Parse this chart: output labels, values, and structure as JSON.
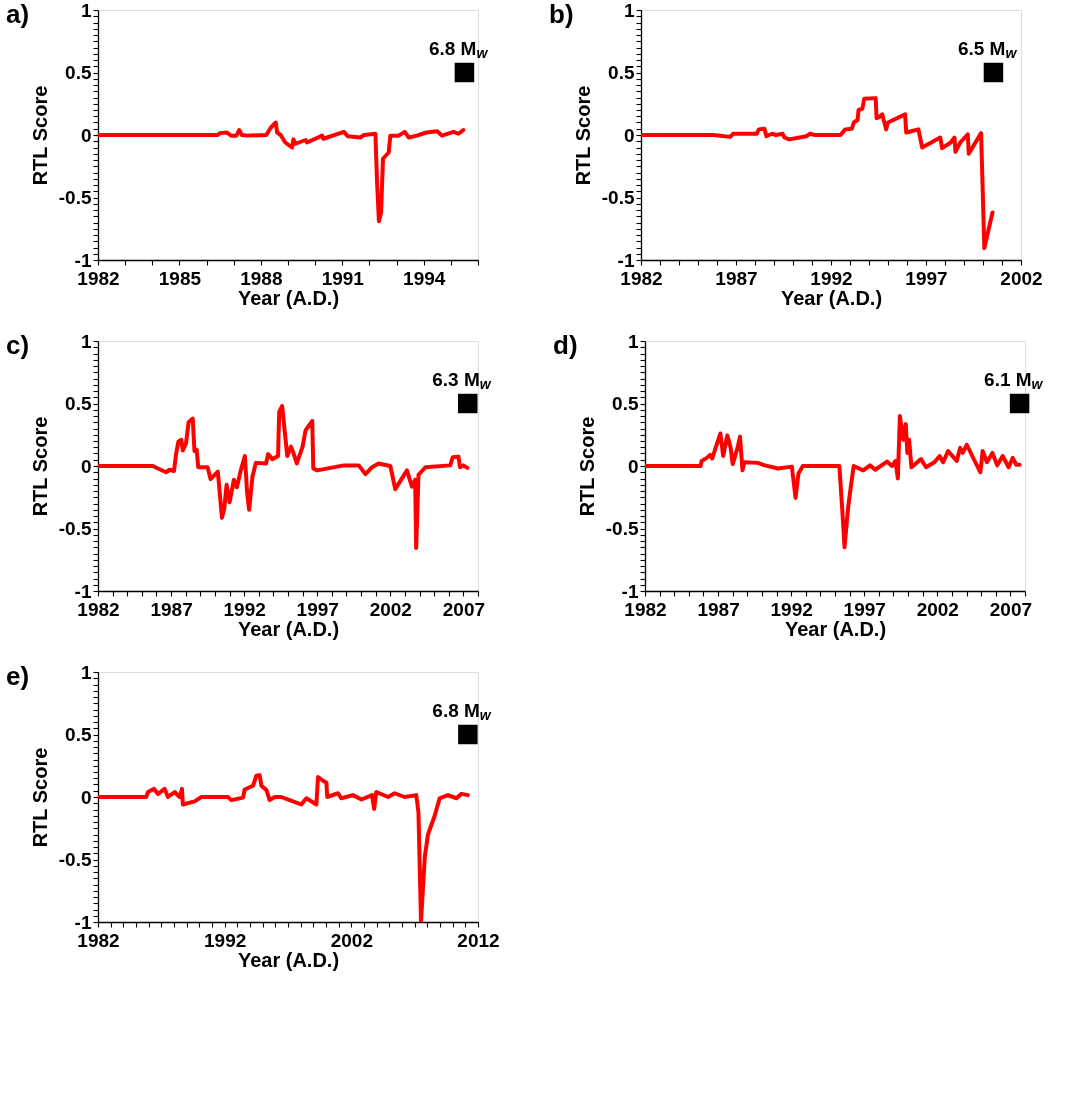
{
  "chart_data": [
    {
      "type": "line",
      "title": "a)",
      "xlabel": "Year (A.D.)",
      "ylabel": "RTL Score",
      "xlim": [
        1982,
        1996
      ],
      "ylim": [
        -1,
        1
      ],
      "grid": false,
      "legend": false,
      "line_style": "solid",
      "xticks": [
        1982,
        {
          "value": 1983,
          "label": null
        },
        {
          "value": 1984,
          "label": null
        },
        1985,
        {
          "value": 1986,
          "label": null
        },
        {
          "value": 1987,
          "label": null
        },
        1988,
        {
          "value": 1989,
          "label": null
        },
        {
          "value": 1990,
          "label": null
        },
        1991,
        {
          "value": 1992,
          "label": null
        },
        {
          "value": 1993,
          "label": null
        },
        1994,
        {
          "value": 1995,
          "label": null
        },
        {
          "value": 1996,
          "label": null
        }
      ],
      "yticks": [
        -1,
        {
          "value": -0.95,
          "label": null
        },
        {
          "value": -0.9,
          "label": null
        },
        {
          "value": -0.85,
          "label": null
        },
        {
          "value": -0.8,
          "label": null
        },
        {
          "value": -0.75,
          "label": null
        },
        {
          "value": -0.7,
          "label": null
        },
        {
          "value": -0.65,
          "label": null
        },
        {
          "value": -0.6,
          "label": null
        },
        {
          "value": -0.55,
          "label": null
        },
        -0.5,
        {
          "value": -0.45,
          "label": null
        },
        {
          "value": -0.4,
          "label": null
        },
        {
          "value": -0.35,
          "label": null
        },
        {
          "value": -0.3,
          "label": null
        },
        {
          "value": -0.25,
          "label": null
        },
        {
          "value": -0.2,
          "label": null
        },
        {
          "value": -0.15,
          "label": null
        },
        {
          "value": -0.1,
          "label": null
        },
        {
          "value": -0.05,
          "label": null
        },
        0,
        {
          "value": 0.05,
          "label": null
        },
        {
          "value": 0.1,
          "label": null
        },
        {
          "value": 0.15,
          "label": null
        },
        {
          "value": 0.2,
          "label": null
        },
        {
          "value": 0.25,
          "label": null
        },
        {
          "value": 0.3,
          "label": null
        },
        {
          "value": 0.35,
          "label": null
        },
        {
          "value": 0.4,
          "label": null
        },
        {
          "value": 0.45,
          "label": null
        },
        0.5,
        {
          "value": 0.55,
          "label": null
        },
        {
          "value": 0.6,
          "label": null
        },
        {
          "value": 0.65,
          "label": null
        },
        {
          "value": 0.7,
          "label": null
        },
        {
          "value": 0.75,
          "label": null
        },
        {
          "value": 0.8,
          "label": null
        },
        {
          "value": 0.85,
          "label": null
        },
        {
          "value": 0.9,
          "label": null
        },
        {
          "value": 0.95,
          "label": null
        },
        1
      ],
      "series": [
        {
          "color": "#ff0000",
          "x": [
            1982,
            1986.4,
            1986.5,
            1986.75,
            1986.9,
            1987.1,
            1987.2,
            1987.3,
            1987.5,
            1988.2,
            1988.37,
            1988.55,
            1988.6,
            1988.73,
            1988.9,
            1989.15,
            1989.2,
            1989.28,
            1989.65,
            1989.7,
            1990.26,
            1990.3,
            1991.06,
            1991.2,
            1991.67,
            1991.8,
            1992.22,
            1992.28,
            1992.35,
            1992.43,
            1992.5,
            1992.71,
            1992.77,
            1993.08,
            1993.3,
            1993.45,
            1993.75,
            1994.1,
            1994.5,
            1994.67,
            1995.1,
            1995.28,
            1995.46
          ],
          "values": [
            0,
            0,
            0.015,
            0.02,
            -0.005,
            -0.005,
            0.04,
            0,
            -0.005,
            0,
            0.06,
            0.1,
            0.02,
            0,
            -0.06,
            -0.1,
            -0.035,
            -0.07,
            -0.04,
            -0.06,
            -0.005,
            -0.03,
            0.025,
            -0.01,
            -0.02,
            0,
            0.01,
            -0.37,
            -0.69,
            -0.62,
            -0.19,
            -0.14,
            -0.005,
            -0.005,
            0.025,
            -0.02,
            -0.005,
            0.02,
            0.03,
            -0.005,
            0.025,
            0.01,
            0.04
          ]
        },
        {
          "type": "scatter",
          "marker": "square",
          "color": "#000000",
          "x": [
            1995.5
          ],
          "values": [
            0.5
          ]
        }
      ],
      "annotations": [
        {
          "text": "6.8 M$_{w}$",
          "x": 1995.5,
          "y": 0.5
        }
      ]
    },
    {
      "type": "line",
      "title": "b)",
      "xlabel": "Year (A.D.)",
      "ylabel": "RTL Score",
      "xlim": [
        1982,
        2002
      ],
      "ylim": [
        -1,
        1
      ],
      "grid": false,
      "legend": false,
      "line_style": "solid",
      "xticks": [
        1982,
        {
          "value": 1983,
          "label": null
        },
        {
          "value": 1984,
          "label": null
        },
        {
          "value": 1985,
          "label": null
        },
        {
          "value": 1986,
          "label": null
        },
        1987,
        {
          "value": 1988,
          "label": null
        },
        {
          "value": 1989,
          "label": null
        },
        {
          "value": 1990,
          "label": null
        },
        {
          "value": 1991,
          "label": null
        },
        1992,
        {
          "value": 1993,
          "label": null
        },
        {
          "value": 1994,
          "label": null
        },
        {
          "value": 1995,
          "label": null
        },
        {
          "value": 1996,
          "label": null
        },
        1997,
        {
          "value": 1998,
          "label": null
        },
        {
          "value": 1999,
          "label": null
        },
        {
          "value": 2000,
          "label": null
        },
        {
          "value": 2001,
          "label": null
        },
        2002
      ],
      "yticks": [
        -1,
        {
          "value": -0.95,
          "label": null
        },
        {
          "value": -0.9,
          "label": null
        },
        {
          "value": -0.85,
          "label": null
        },
        {
          "value": -0.8,
          "label": null
        },
        {
          "value": -0.75,
          "label": null
        },
        {
          "value": -0.7,
          "label": null
        },
        {
          "value": -0.65,
          "label": null
        },
        {
          "value": -0.6,
          "label": null
        },
        {
          "value": -0.55,
          "label": null
        },
        -0.5,
        {
          "value": -0.45,
          "label": null
        },
        {
          "value": -0.4,
          "label": null
        },
        {
          "value": -0.35,
          "label": null
        },
        {
          "value": -0.3,
          "label": null
        },
        {
          "value": -0.25,
          "label": null
        },
        {
          "value": -0.2,
          "label": null
        },
        {
          "value": -0.15,
          "label": null
        },
        {
          "value": -0.1,
          "label": null
        },
        {
          "value": -0.05,
          "label": null
        },
        0,
        {
          "value": 0.05,
          "label": null
        },
        {
          "value": 0.1,
          "label": null
        },
        {
          "value": 0.15,
          "label": null
        },
        {
          "value": 0.2,
          "label": null
        },
        {
          "value": 0.25,
          "label": null
        },
        {
          "value": 0.3,
          "label": null
        },
        {
          "value": 0.35,
          "label": null
        },
        {
          "value": 0.4,
          "label": null
        },
        {
          "value": 0.45,
          "label": null
        },
        0.5,
        {
          "value": 0.55,
          "label": null
        },
        {
          "value": 0.6,
          "label": null
        },
        {
          "value": 0.65,
          "label": null
        },
        {
          "value": 0.7,
          "label": null
        },
        {
          "value": 0.75,
          "label": null
        },
        {
          "value": 0.8,
          "label": null
        },
        {
          "value": 0.85,
          "label": null
        },
        {
          "value": 0.9,
          "label": null
        },
        {
          "value": 0.95,
          "label": null
        },
        1
      ],
      "series": [
        {
          "color": "#ff0000",
          "x": [
            1982,
            1985.8,
            1986.7,
            1986.85,
            1988.1,
            1988.2,
            1988.5,
            1988.6,
            1988.9,
            1989.1,
            1989.45,
            1989.55,
            1989.8,
            1990.7,
            1990.9,
            1991.15,
            1992.5,
            1992.75,
            1993.1,
            1993.2,
            1993.4,
            1993.45,
            1993.65,
            1993.75,
            1994.35,
            1994.4,
            1994.55,
            1994.7,
            1994.9,
            1995,
            1995.9,
            1995.96,
            1996.6,
            1996.8,
            1997.75,
            1997.85,
            1998.3,
            1998.5,
            1998.55,
            1998.8,
            1999.2,
            1999.25,
            1999.9,
            2000.07,
            2000.5
          ],
          "values": [
            0,
            0,
            -0.015,
            0.01,
            0.01,
            0.045,
            0.05,
            -0.01,
            0.01,
            0,
            0.01,
            -0.02,
            -0.035,
            -0.01,
            0.01,
            0,
            0,
            0.045,
            0.05,
            0.1,
            0.12,
            0.2,
            0.21,
            0.29,
            0.295,
            0.135,
            0.145,
            0.165,
            0.045,
            0.1,
            0.165,
            0.02,
            0.045,
            -0.1,
            -0.02,
            -0.105,
            -0.06,
            -0.02,
            -0.135,
            -0.06,
            0.005,
            -0.15,
            0.015,
            -0.905,
            -0.62
          ]
        },
        {
          "type": "scatter",
          "marker": "square",
          "color": "#000000",
          "x": [
            2000.55
          ],
          "values": [
            0.5
          ]
        }
      ],
      "annotations": [
        {
          "text": "6.5 M$_{w}$",
          "x": 2000.55,
          "y": 0.5
        }
      ]
    },
    {
      "type": "line",
      "title": "c)",
      "xlabel": "Year (A.D.)",
      "ylabel": "RTL Score",
      "xlim": [
        1982,
        2008
      ],
      "ylim": [
        -1,
        1
      ],
      "grid": false,
      "legend": false,
      "line_style": "solid",
      "xticks": [
        1982,
        {
          "value": 1983,
          "label": null
        },
        {
          "value": 1984,
          "label": null
        },
        {
          "value": 1985,
          "label": null
        },
        {
          "value": 1986,
          "label": null
        },
        1987,
        {
          "value": 1988,
          "label": null
        },
        {
          "value": 1989,
          "label": null
        },
        {
          "value": 1990,
          "label": null
        },
        {
          "value": 1991,
          "label": null
        },
        1992,
        {
          "value": 1993,
          "label": null
        },
        {
          "value": 1994,
          "label": null
        },
        {
          "value": 1995,
          "label": null
        },
        {
          "value": 1996,
          "label": null
        },
        1997,
        {
          "value": 1998,
          "label": null
        },
        {
          "value": 1999,
          "label": null
        },
        {
          "value": 2000,
          "label": null
        },
        {
          "value": 2001,
          "label": null
        },
        2002,
        {
          "value": 2003,
          "label": null
        },
        {
          "value": 2004,
          "label": null
        },
        {
          "value": 2005,
          "label": null
        },
        {
          "value": 2006,
          "label": null
        },
        2007,
        {
          "value": 2008,
          "label": null
        }
      ],
      "yticks": [
        -1,
        {
          "value": -0.95,
          "label": null
        },
        {
          "value": -0.9,
          "label": null
        },
        {
          "value": -0.85,
          "label": null
        },
        {
          "value": -0.8,
          "label": null
        },
        {
          "value": -0.75,
          "label": null
        },
        {
          "value": -0.7,
          "label": null
        },
        {
          "value": -0.65,
          "label": null
        },
        {
          "value": -0.6,
          "label": null
        },
        {
          "value": -0.55,
          "label": null
        },
        -0.5,
        {
          "value": -0.45,
          "label": null
        },
        {
          "value": -0.4,
          "label": null
        },
        {
          "value": -0.35,
          "label": null
        },
        {
          "value": -0.3,
          "label": null
        },
        {
          "value": -0.25,
          "label": null
        },
        {
          "value": -0.2,
          "label": null
        },
        {
          "value": -0.15,
          "label": null
        },
        {
          "value": -0.1,
          "label": null
        },
        {
          "value": -0.05,
          "label": null
        },
        0,
        {
          "value": 0.05,
          "label": null
        },
        {
          "value": 0.1,
          "label": null
        },
        {
          "value": 0.15,
          "label": null
        },
        {
          "value": 0.2,
          "label": null
        },
        {
          "value": 0.25,
          "label": null
        },
        {
          "value": 0.3,
          "label": null
        },
        {
          "value": 0.35,
          "label": null
        },
        {
          "value": 0.4,
          "label": null
        },
        {
          "value": 0.45,
          "label": null
        },
        0.5,
        {
          "value": 0.55,
          "label": null
        },
        {
          "value": 0.6,
          "label": null
        },
        {
          "value": 0.65,
          "label": null
        },
        {
          "value": 0.7,
          "label": null
        },
        {
          "value": 0.75,
          "label": null
        },
        {
          "value": 0.8,
          "label": null
        },
        {
          "value": 0.85,
          "label": null
        },
        {
          "value": 0.9,
          "label": null
        },
        {
          "value": 0.95,
          "label": null
        },
        1
      ],
      "series": [
        {
          "color": "#ff0000",
          "x": [
            1982,
            1985.75,
            1986.1,
            1986.66,
            1986.9,
            1987.2,
            1987.34,
            1987.5,
            1987.7,
            1987.8,
            1988.02,
            1988.2,
            1988.48,
            1988.6,
            1988.75,
            1988.86,
            1989.5,
            1989.7,
            1990.2,
            1990.48,
            1990.64,
            1990.8,
            1991,
            1991.3,
            1991.5,
            1991.77,
            1992.05,
            1992.2,
            1992.34,
            1992.57,
            1992.8,
            1993.5,
            1993.64,
            1993.93,
            1994.32,
            1994.4,
            1994.6,
            1994.77,
            1994.95,
            1995.2,
            1995.4,
            1995.6,
            1996,
            1996.2,
            1996.66,
            1996.73,
            1997,
            1998.82,
            1999.84,
            2000.3,
            2000.75,
            2001.2,
            2002,
            2002.34,
            2003.14,
            2003.48,
            2003.7,
            2003.77,
            2003.93,
            2004.4,
            2006.1,
            2006.27,
            2006.66,
            2006.77,
            2007,
            2007.27
          ],
          "values": [
            0,
            0,
            -0.02,
            -0.05,
            -0.03,
            -0.04,
            0.095,
            0.195,
            0.21,
            0.125,
            0.18,
            0.35,
            0.38,
            0.12,
            0.13,
            -0.01,
            -0.01,
            -0.105,
            -0.045,
            -0.415,
            -0.34,
            -0.15,
            -0.29,
            -0.11,
            -0.17,
            -0.035,
            0.08,
            -0.21,
            -0.35,
            -0.085,
            0.025,
            0.02,
            0.095,
            0.055,
            0.08,
            0.435,
            0.48,
            0.285,
            0.08,
            0.155,
            0.095,
            0.02,
            0.155,
            0.285,
            0.36,
            -0.02,
            -0.035,
            0.005,
            0.005,
            -0.065,
            -0.01,
            0.02,
            0,
            -0.185,
            -0.035,
            -0.165,
            -0.11,
            -0.655,
            -0.07,
            -0.01,
            0.005,
            0.07,
            0.075,
            -0.01,
            0.005,
            -0.015
          ]
        },
        {
          "type": "scatter",
          "marker": "square",
          "color": "#000000",
          "x": [
            2007.3
          ],
          "values": [
            0.5
          ]
        }
      ],
      "annotations": [
        {
          "text": "6.3 M$_{w}$",
          "x": 2007.3,
          "y": 0.5
        }
      ]
    },
    {
      "type": "line",
      "title": "d)",
      "xlabel": "Year (A.D.)",
      "ylabel": "RTL Score",
      "xlim": [
        1982,
        2008
      ],
      "ylim": [
        -1,
        1
      ],
      "grid": false,
      "legend": false,
      "line_style": "solid",
      "xticks": [
        1982,
        {
          "value": 1983,
          "label": null
        },
        {
          "value": 1984,
          "label": null
        },
        {
          "value": 1985,
          "label": null
        },
        {
          "value": 1986,
          "label": null
        },
        1987,
        {
          "value": 1988,
          "label": null
        },
        {
          "value": 1989,
          "label": null
        },
        {
          "value": 1990,
          "label": null
        },
        {
          "value": 1991,
          "label": null
        },
        1992,
        {
          "value": 1993,
          "label": null
        },
        {
          "value": 1994,
          "label": null
        },
        {
          "value": 1995,
          "label": null
        },
        {
          "value": 1996,
          "label": null
        },
        1997,
        {
          "value": 1998,
          "label": null
        },
        {
          "value": 1999,
          "label": null
        },
        {
          "value": 2000,
          "label": null
        },
        {
          "value": 2001,
          "label": null
        },
        2002,
        {
          "value": 2003,
          "label": null
        },
        {
          "value": 2004,
          "label": null
        },
        {
          "value": 2005,
          "label": null
        },
        {
          "value": 2006,
          "label": null
        },
        2007,
        {
          "value": 2008,
          "label": null
        }
      ],
      "yticks": [
        -1,
        {
          "value": -0.95,
          "label": null
        },
        {
          "value": -0.9,
          "label": null
        },
        {
          "value": -0.85,
          "label": null
        },
        {
          "value": -0.8,
          "label": null
        },
        {
          "value": -0.75,
          "label": null
        },
        {
          "value": -0.7,
          "label": null
        },
        {
          "value": -0.65,
          "label": null
        },
        {
          "value": -0.6,
          "label": null
        },
        {
          "value": -0.55,
          "label": null
        },
        -0.5,
        {
          "value": -0.45,
          "label": null
        },
        {
          "value": -0.4,
          "label": null
        },
        {
          "value": -0.35,
          "label": null
        },
        {
          "value": -0.3,
          "label": null
        },
        {
          "value": -0.25,
          "label": null
        },
        {
          "value": -0.2,
          "label": null
        },
        {
          "value": -0.15,
          "label": null
        },
        {
          "value": -0.1,
          "label": null
        },
        {
          "value": -0.05,
          "label": null
        },
        0,
        {
          "value": 0.05,
          "label": null
        },
        {
          "value": 0.1,
          "label": null
        },
        {
          "value": 0.15,
          "label": null
        },
        {
          "value": 0.2,
          "label": null
        },
        {
          "value": 0.25,
          "label": null
        },
        {
          "value": 0.3,
          "label": null
        },
        {
          "value": 0.35,
          "label": null
        },
        {
          "value": 0.4,
          "label": null
        },
        {
          "value": 0.45,
          "label": null
        },
        0.5,
        {
          "value": 0.55,
          "label": null
        },
        {
          "value": 0.6,
          "label": null
        },
        {
          "value": 0.65,
          "label": null
        },
        {
          "value": 0.7,
          "label": null
        },
        {
          "value": 0.75,
          "label": null
        },
        {
          "value": 0.8,
          "label": null
        },
        {
          "value": 0.85,
          "label": null
        },
        {
          "value": 0.9,
          "label": null
        },
        {
          "value": 0.95,
          "label": null
        },
        1
      ],
      "series": [
        {
          "color": "#ff0000",
          "x": [
            1982,
            1985.8,
            1985.88,
            1986.23,
            1986.47,
            1986.6,
            1986.86,
            1987.16,
            1987.35,
            1987.63,
            1987.86,
            1988,
            1988.33,
            1988.5,
            1988.67,
            1988.8,
            1989.72,
            1990.2,
            1991.1,
            1992.05,
            1992.3,
            1992.5,
            1992.8,
            1995.3,
            1995.53,
            1995.65,
            1995.9,
            1996.1,
            1996.28,
            1996.93,
            1997.4,
            1997.75,
            1998.56,
            1998.9,
            1999.14,
            1999.3,
            1999.44,
            1999.67,
            1999.84,
            1999.95,
            2000.07,
            2000.23,
            2000.88,
            2001.23,
            2001.8,
            2002.16,
            2002.4,
            2002.74,
            2003.33,
            2003.56,
            2003.74,
            2004.02,
            2004.6,
            2004.95,
            2005.1,
            2005.4,
            2005.77,
            2006.1,
            2006.47,
            2006.88,
            2007.16,
            2007.4,
            2007.63
          ],
          "values": [
            0,
            0,
            0.04,
            0.065,
            0.09,
            0.06,
            0.155,
            0.26,
            0.08,
            0.245,
            0.145,
            0.015,
            0.145,
            0.235,
            -0.035,
            0.03,
            0.025,
            0.005,
            -0.02,
            -0.005,
            -0.255,
            -0.06,
            0,
            0,
            -0.41,
            -0.65,
            -0.33,
            -0.15,
            0,
            -0.035,
            0.005,
            -0.03,
            0.035,
            0,
            0.04,
            -0.1,
            0.4,
            0.21,
            0.335,
            0.105,
            0.21,
            -0.01,
            0.055,
            -0.01,
            0.03,
            0.08,
            0.03,
            0.12,
            0.04,
            0.145,
            0.105,
            0.17,
            0.03,
            -0.05,
            0.12,
            0.03,
            0.105,
            0.005,
            0.08,
            -0.01,
            0.065,
            0.01,
            0.01
          ]
        },
        {
          "type": "scatter",
          "marker": "square",
          "color": "#000000",
          "x": [
            2007.63
          ],
          "values": [
            0.5
          ]
        }
      ],
      "annotations": [
        {
          "text": "6.1 M$_{w}$",
          "x": 2007.63,
          "y": 0.5
        }
      ]
    },
    {
      "type": "line",
      "title": "e)",
      "xlabel": "Year (A.D.)",
      "ylabel": "RTL Score",
      "xlim": [
        1982,
        2012
      ],
      "ylim": [
        -1,
        1
      ],
      "grid": false,
      "legend": false,
      "line_style": "solid",
      "xticks": [
        1982,
        {
          "value": 1983,
          "label": null
        },
        {
          "value": 1984,
          "label": null
        },
        {
          "value": 1985,
          "label": null
        },
        {
          "value": 1986,
          "label": null
        },
        {
          "value": 1987,
          "label": null
        },
        {
          "value": 1988,
          "label": null
        },
        {
          "value": 1989,
          "label": null
        },
        {
          "value": 1990,
          "label": null
        },
        {
          "value": 1991,
          "label": null
        },
        1992,
        {
          "value": 1993,
          "label": null
        },
        {
          "value": 1994,
          "label": null
        },
        {
          "value": 1995,
          "label": null
        },
        {
          "value": 1996,
          "label": null
        },
        {
          "value": 1997,
          "label": null
        },
        {
          "value": 1998,
          "label": null
        },
        {
          "value": 1999,
          "label": null
        },
        {
          "value": 2000,
          "label": null
        },
        {
          "value": 2001,
          "label": null
        },
        2002,
        {
          "value": 2003,
          "label": null
        },
        {
          "value": 2004,
          "label": null
        },
        {
          "value": 2005,
          "label": null
        },
        {
          "value": 2006,
          "label": null
        },
        {
          "value": 2007,
          "label": null
        },
        {
          "value": 2008,
          "label": null
        },
        {
          "value": 2009,
          "label": null
        },
        {
          "value": 2010,
          "label": null
        },
        {
          "value": 2011,
          "label": null
        },
        2012
      ],
      "yticks": [
        -1,
        {
          "value": -0.95,
          "label": null
        },
        {
          "value": -0.9,
          "label": null
        },
        {
          "value": -0.85,
          "label": null
        },
        {
          "value": -0.8,
          "label": null
        },
        {
          "value": -0.75,
          "label": null
        },
        {
          "value": -0.7,
          "label": null
        },
        {
          "value": -0.65,
          "label": null
        },
        {
          "value": -0.6,
          "label": null
        },
        {
          "value": -0.55,
          "label": null
        },
        -0.5,
        {
          "value": -0.45,
          "label": null
        },
        {
          "value": -0.4,
          "label": null
        },
        {
          "value": -0.35,
          "label": null
        },
        {
          "value": -0.3,
          "label": null
        },
        {
          "value": -0.25,
          "label": null
        },
        {
          "value": -0.2,
          "label": null
        },
        {
          "value": -0.15,
          "label": null
        },
        {
          "value": -0.1,
          "label": null
        },
        {
          "value": -0.05,
          "label": null
        },
        0,
        {
          "value": 0.05,
          "label": null
        },
        {
          "value": 0.1,
          "label": null
        },
        {
          "value": 0.15,
          "label": null
        },
        {
          "value": 0.2,
          "label": null
        },
        {
          "value": 0.25,
          "label": null
        },
        {
          "value": 0.3,
          "label": null
        },
        {
          "value": 0.35,
          "label": null
        },
        {
          "value": 0.4,
          "label": null
        },
        {
          "value": 0.45,
          "label": null
        },
        0.5,
        {
          "value": 0.55,
          "label": null
        },
        {
          "value": 0.6,
          "label": null
        },
        {
          "value": 0.65,
          "label": null
        },
        {
          "value": 0.7,
          "label": null
        },
        {
          "value": 0.75,
          "label": null
        },
        {
          "value": 0.8,
          "label": null
        },
        {
          "value": 0.85,
          "label": null
        },
        {
          "value": 0.9,
          "label": null
        },
        {
          "value": 0.95,
          "label": null
        },
        1
      ],
      "series": [
        {
          "color": "#ff0000",
          "x": [
            1982,
            1985.8,
            1985.95,
            1986.42,
            1986.74,
            1987.26,
            1987.53,
            1988.05,
            1988.45,
            1988.63,
            1988.7,
            1989.63,
            1990.16,
            1992.26,
            1992.53,
            1993.45,
            1993.58,
            1994.24,
            1994.5,
            1994.76,
            1994.9,
            1995.3,
            1995.55,
            1995.95,
            1996.47,
            1997.13,
            1998.05,
            1998.45,
            1999.24,
            1999.37,
            1999.76,
            2000.03,
            2000.1,
            2000.95,
            2001.2,
            2002.13,
            2002.8,
            2003.63,
            2003.8,
            2003.97,
            2004.9,
            2005.42,
            2006.2,
            2007.13,
            2007.3,
            2007.5,
            2007.8,
            2008.05,
            2008.58,
            2008.97,
            2009.63,
            2010.3,
            2010.7,
            2011.2
          ],
          "values": [
            0,
            0,
            0.04,
            0.065,
            0.025,
            0.065,
            0,
            0.04,
            0,
            0.065,
            -0.06,
            -0.035,
            0,
            0,
            -0.025,
            -0.005,
            0.06,
            0.09,
            0.17,
            0.175,
            0.09,
            0.055,
            -0.025,
            0,
            0,
            -0.025,
            -0.06,
            -0.01,
            -0.06,
            0.16,
            0.13,
            0.115,
            0,
            0.03,
            -0.01,
            0.015,
            -0.02,
            0.015,
            -0.095,
            0.04,
            0,
            0.03,
            0,
            0.015,
            -0.125,
            -1,
            -0.48,
            -0.3,
            -0.15,
            -0.01,
            0.015,
            -0.01,
            0.025,
            0.015
          ]
        },
        {
          "type": "scatter",
          "marker": "square",
          "color": "#000000",
          "x": [
            2011.2
          ],
          "values": [
            0.5
          ]
        }
      ],
      "annotations": [
        {
          "text": "6.8 M$_{w}$",
          "x": 2011.2,
          "y": 0.5
        }
      ]
    }
  ]
}
